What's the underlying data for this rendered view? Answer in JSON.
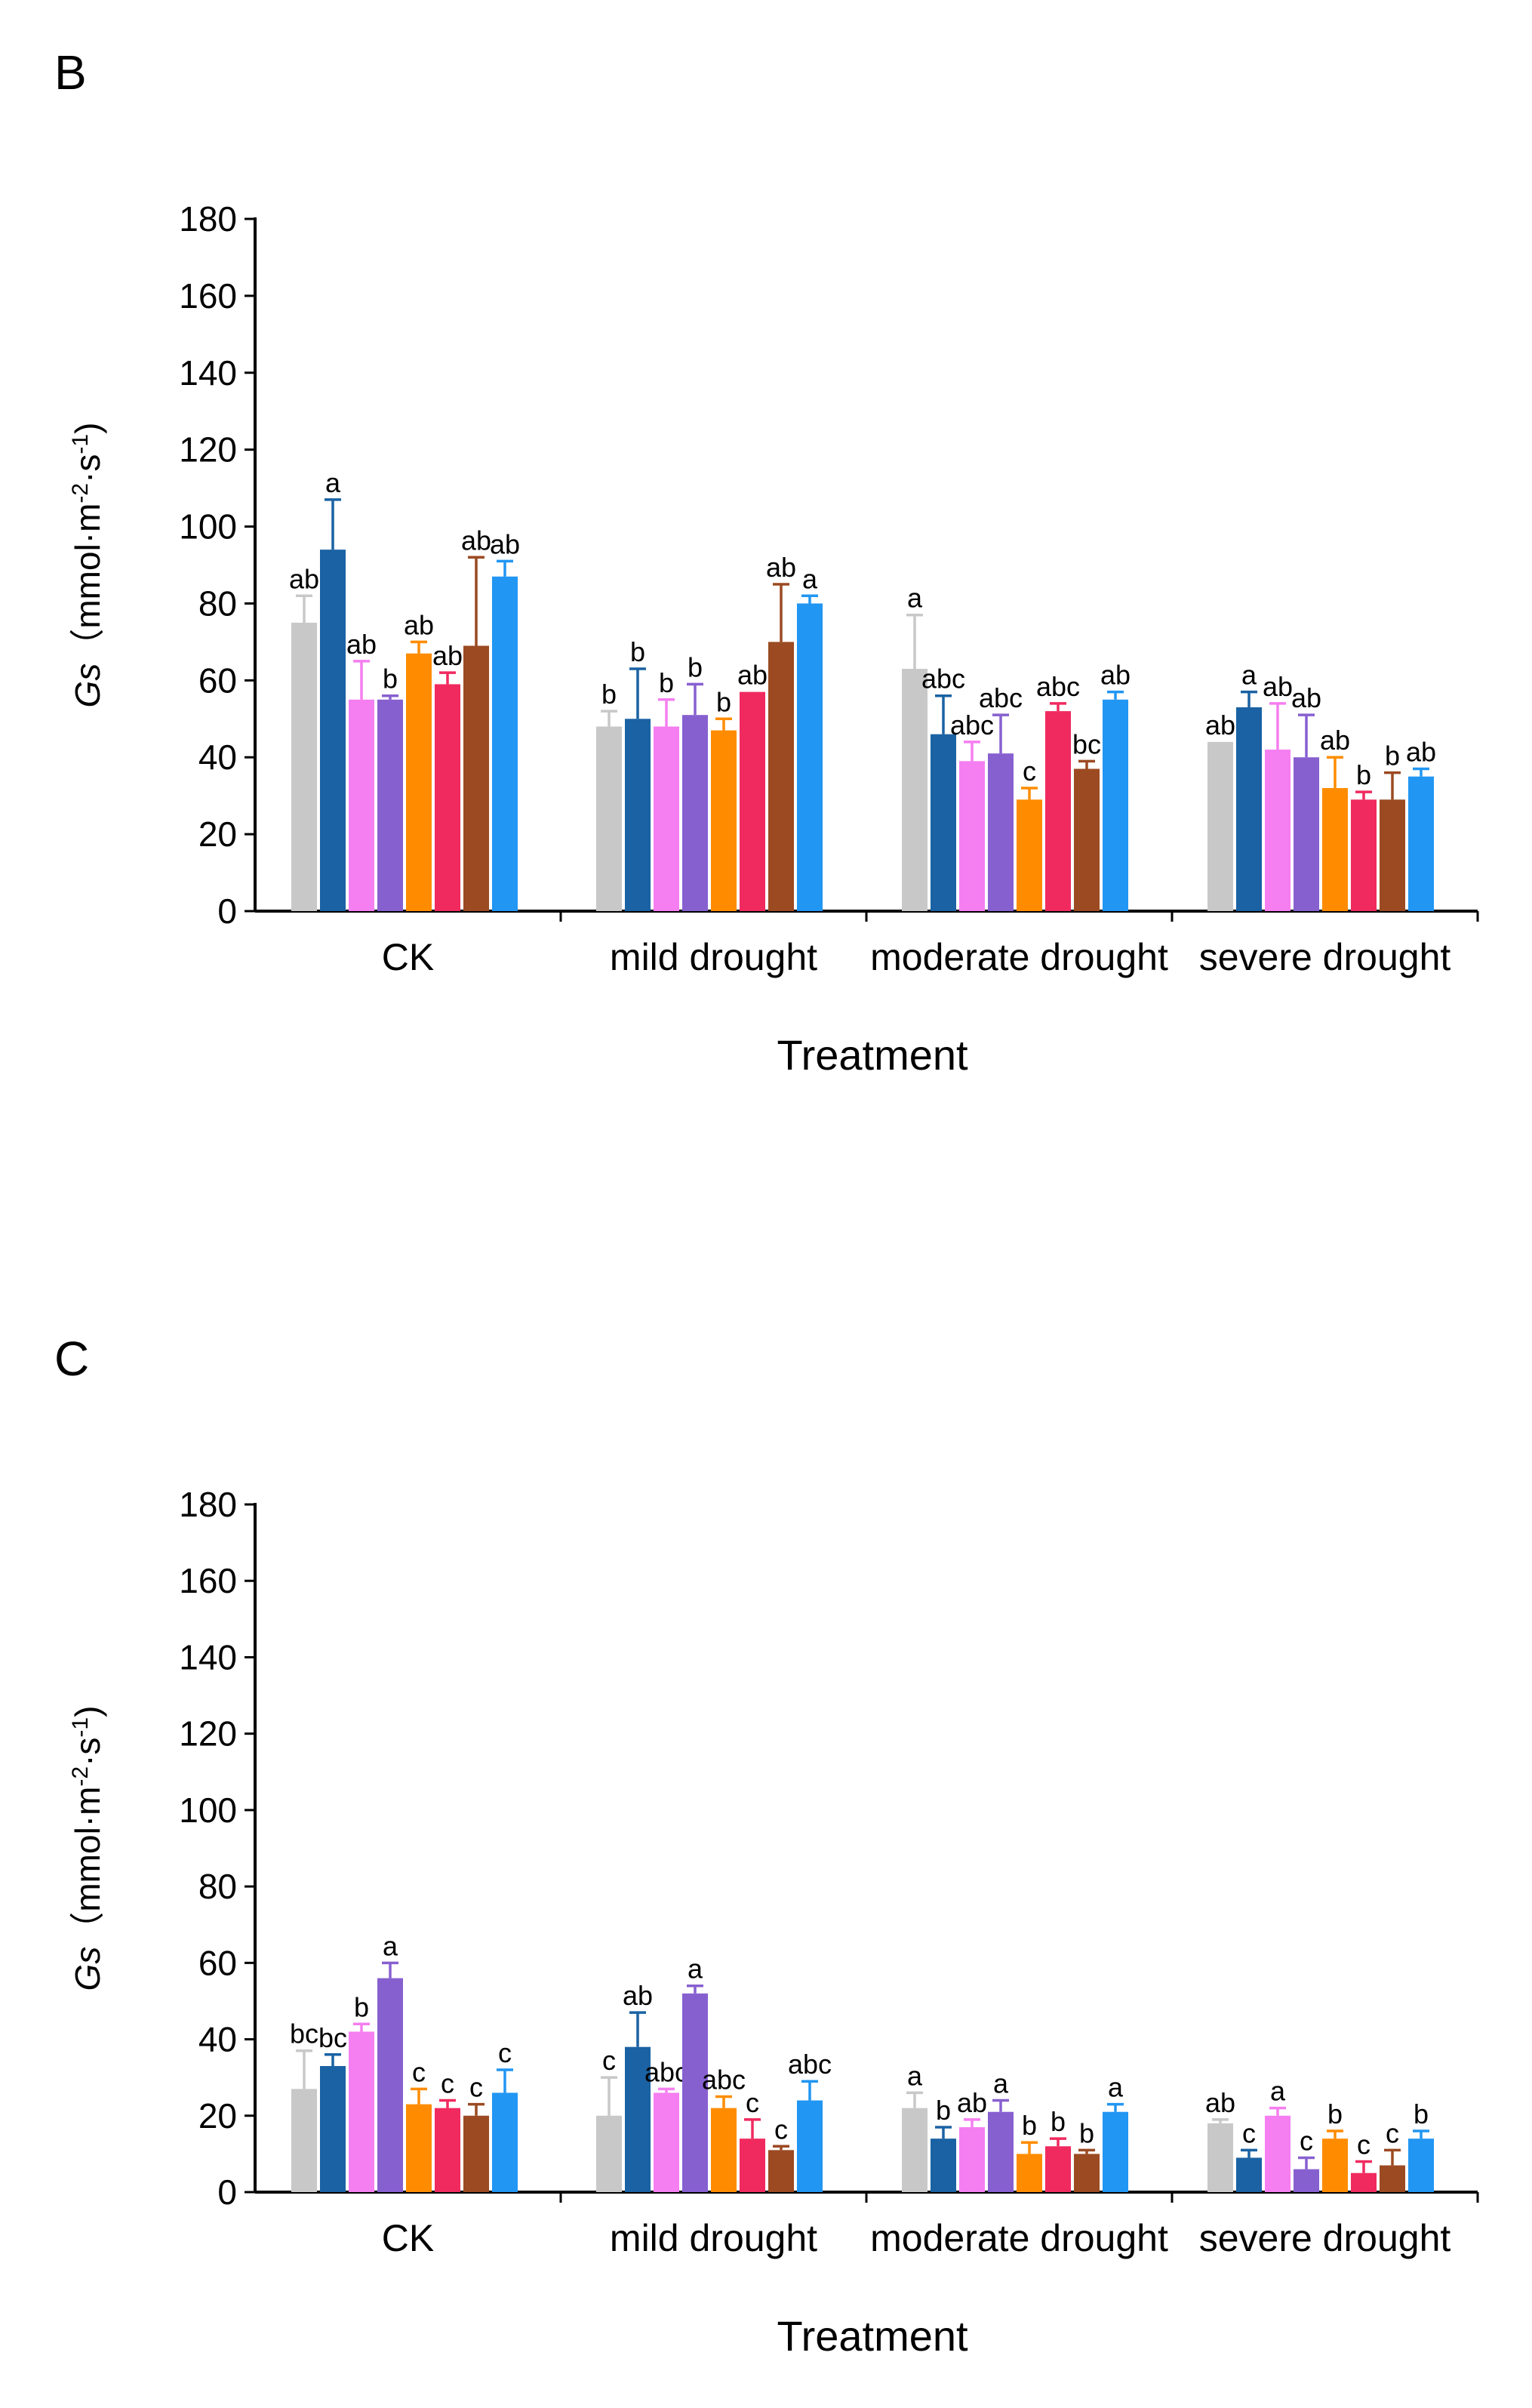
{
  "colors": [
    "#c8c8c8",
    "#1a62a3",
    "#f57ef0",
    "#8760d0",
    "#ff8c00",
    "#f02a5f",
    "#9b4a22",
    "#2196f3"
  ],
  "ylabel_parts": {
    "italic": "Gs",
    "paren_open": "（mmol·m",
    "sup1": "-2",
    "mid": "·s",
    "sup2": "-1",
    "paren_close": ")"
  },
  "chart_data": [
    {
      "panel": "B",
      "type": "bar",
      "xlabel": "Treatment",
      "ylabel": "Gs（mmol·m-2·s-1)",
      "ylim": [
        0,
        180
      ],
      "yticks": [
        "0",
        "20",
        "40",
        "60",
        "80",
        "100",
        "120",
        "140",
        "160",
        "180"
      ],
      "categories": [
        "CK",
        "mild drought",
        "moderate drought",
        "severe drought"
      ],
      "series": [
        {
          "values": [
            75,
            48,
            63,
            44
          ],
          "errors": [
            7,
            4,
            14,
            0
          ],
          "letters": [
            "ab",
            "b",
            "a",
            "ab"
          ]
        },
        {
          "values": [
            94,
            50,
            46,
            53
          ],
          "errors": [
            13,
            13,
            10,
            4
          ],
          "letters": [
            "a",
            "b",
            "abc",
            "a"
          ]
        },
        {
          "values": [
            55,
            48,
            39,
            42
          ],
          "errors": [
            10,
            7,
            5,
            12
          ],
          "letters": [
            "ab",
            "b",
            "abc",
            "ab"
          ]
        },
        {
          "values": [
            55,
            51,
            41,
            40
          ],
          "errors": [
            1,
            8,
            10,
            11
          ],
          "letters": [
            "b",
            "b",
            "abc",
            "ab"
          ]
        },
        {
          "values": [
            67,
            47,
            29,
            32
          ],
          "errors": [
            3,
            3,
            3,
            8
          ],
          "letters": [
            "ab",
            "b",
            "c",
            "ab"
          ]
        },
        {
          "values": [
            59,
            57,
            52,
            29
          ],
          "errors": [
            3,
            0,
            2,
            2
          ],
          "letters": [
            "ab",
            "ab",
            "abc",
            "b"
          ]
        },
        {
          "values": [
            69,
            70,
            37,
            29
          ],
          "errors": [
            23,
            15,
            2,
            7
          ],
          "letters": [
            "ab",
            "ab",
            "bc",
            "b"
          ]
        },
        {
          "values": [
            87,
            80,
            55,
            35
          ],
          "errors": [
            4,
            2,
            2,
            2
          ],
          "letters": [
            "ab",
            "a",
            "ab",
            "ab"
          ]
        }
      ]
    },
    {
      "panel": "C",
      "type": "bar",
      "xlabel": "Treatment",
      "ylabel": "Gs（mmol·m-2·s-1)",
      "ylim": [
        0,
        180
      ],
      "yticks": [
        "0",
        "20",
        "40",
        "60",
        "80",
        "100",
        "120",
        "140",
        "160",
        "180"
      ],
      "categories": [
        "CK",
        "mild drought",
        "moderate drought",
        "severe drought"
      ],
      "series": [
        {
          "values": [
            27,
            20,
            22,
            18
          ],
          "errors": [
            10,
            10,
            4,
            1
          ],
          "letters": [
            "bc",
            "c",
            "a",
            "ab"
          ]
        },
        {
          "values": [
            33,
            38,
            14,
            9
          ],
          "errors": [
            3,
            9,
            3,
            2
          ],
          "letters": [
            "bc",
            "ab",
            "b",
            "c"
          ]
        },
        {
          "values": [
            42,
            26,
            17,
            20
          ],
          "errors": [
            2,
            1,
            2,
            2
          ],
          "letters": [
            "b",
            "abc",
            "ab",
            "a"
          ]
        },
        {
          "values": [
            56,
            52,
            21,
            6
          ],
          "errors": [
            4,
            2,
            3,
            3
          ],
          "letters": [
            "a",
            "a",
            "a",
            "c"
          ]
        },
        {
          "values": [
            23,
            22,
            10,
            14
          ],
          "errors": [
            4,
            3,
            3,
            2
          ],
          "letters": [
            "c",
            "abc",
            "b",
            "b"
          ]
        },
        {
          "values": [
            22,
            14,
            12,
            5
          ],
          "errors": [
            2,
            5,
            2,
            3
          ],
          "letters": [
            "c",
            "c",
            "b",
            "c"
          ]
        },
        {
          "values": [
            20,
            11,
            10,
            7
          ],
          "errors": [
            3,
            1,
            1,
            4
          ],
          "letters": [
            "c",
            "c",
            "b",
            "c"
          ]
        },
        {
          "values": [
            26,
            24,
            21,
            14
          ],
          "errors": [
            6,
            5,
            2,
            2
          ],
          "letters": [
            "c",
            "abc",
            "a",
            "b"
          ]
        }
      ]
    }
  ]
}
